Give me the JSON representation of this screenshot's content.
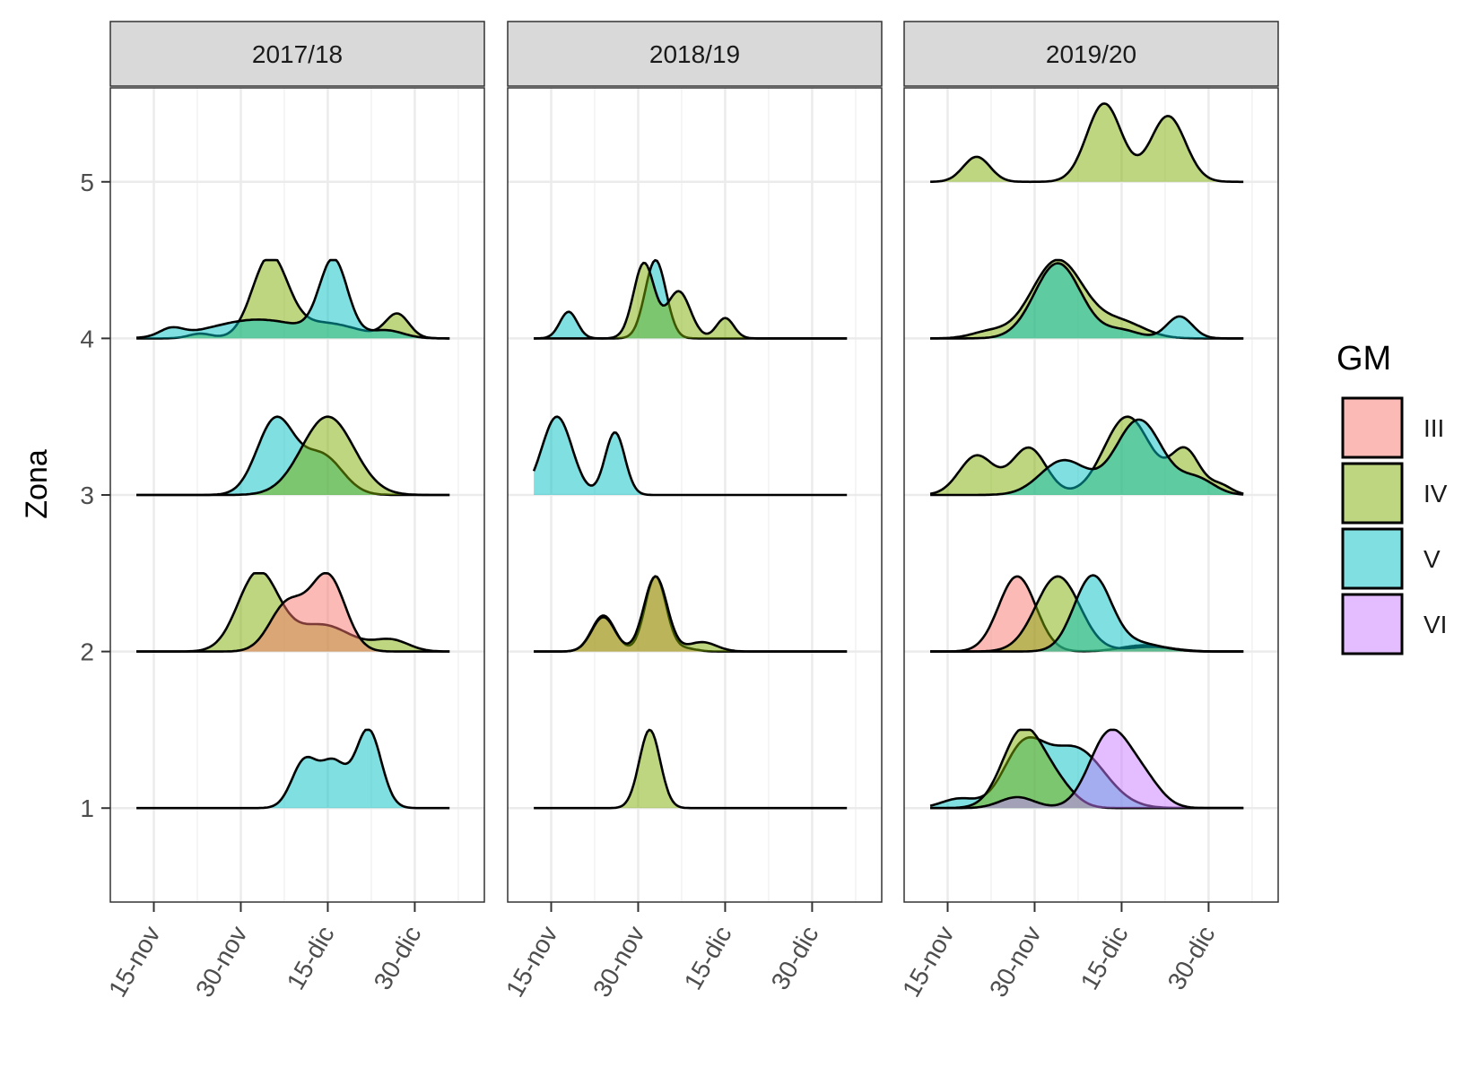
{
  "chart_data": {
    "type": "area",
    "subtype": "ridgeline-density",
    "ylabel": "Zona",
    "yticks": [
      1,
      2,
      3,
      4,
      5
    ],
    "ylim": [
      0.4,
      5.6
    ],
    "x_ticks": [
      "15-nov",
      "30-nov",
      "15-dic",
      "30-dic"
    ],
    "x_tick_days": [
      15,
      30,
      45,
      60
    ],
    "xlim_days": [
      7.5,
      72
    ],
    "x_start_day": 12,
    "x_end_day": 66,
    "legend": {
      "title": "GM",
      "position": "right",
      "entries": [
        {
          "key": "III",
          "label": "III",
          "color": "#F8766D"
        },
        {
          "key": "IV",
          "label": "IV",
          "color": "#7CAE00"
        },
        {
          "key": "V",
          "label": "V",
          "color": "#00BFC4"
        },
        {
          "key": "VI",
          "label": "VI",
          "color": "#C77CFF"
        }
      ]
    },
    "facets": [
      {
        "label": "2017/18",
        "series": [
          {
            "zona": 1,
            "gm": "V",
            "peaks": [
              [
                41,
                0.3,
                2.2
              ],
              [
                46,
                0.28,
                2.2
              ],
              [
                52,
                0.5,
                2.2
              ]
            ]
          },
          {
            "zona": 2,
            "gm": "IV",
            "peaks": [
              [
                33,
                0.5,
                3.5
              ],
              [
                44,
                0.17,
                5
              ],
              [
                56,
                0.07,
                3
              ]
            ]
          },
          {
            "zona": 2,
            "gm": "III",
            "peaks": [
              [
                38,
                0.3,
                3
              ],
              [
                45,
                0.48,
                3
              ]
            ]
          },
          {
            "zona": 3,
            "gm": "V",
            "peaks": [
              [
                36,
                0.48,
                3.2
              ],
              [
                44,
                0.25,
                3.5
              ]
            ]
          },
          {
            "zona": 3,
            "gm": "IV",
            "peaks": [
              [
                45,
                0.5,
                4.5
              ]
            ]
          },
          {
            "zona": 4,
            "gm": "IV",
            "peaks": [
              [
                23,
                0.03,
                2
              ],
              [
                35,
                0.5,
                3
              ],
              [
                44,
                0.1,
                6
              ],
              [
                57,
                0.15,
                2
              ]
            ]
          },
          {
            "zona": 4,
            "gm": "V",
            "peaks": [
              [
                18,
                0.05,
                2
              ],
              [
                33,
                0.12,
                8
              ],
              [
                46,
                0.48,
                2.4
              ],
              [
                55,
                0.05,
                3
              ]
            ]
          }
        ]
      },
      {
        "label": "2018/19",
        "series": [
          {
            "zona": 1,
            "gm": "IV",
            "peaks": [
              [
                32,
                0.5,
                1.8
              ]
            ]
          },
          {
            "zona": 2,
            "gm": "III",
            "peaks": [
              [
                24,
                0.23,
                2
              ],
              [
                33,
                0.48,
                1.8
              ],
              [
                38,
                0.02,
                2
              ]
            ]
          },
          {
            "zona": 2,
            "gm": "IV",
            "peaks": [
              [
                24,
                0.22,
                2
              ],
              [
                33,
                0.48,
                2
              ],
              [
                41,
                0.06,
                2.5
              ]
            ]
          },
          {
            "zona": 3,
            "gm": "V",
            "peaks": [
              [
                16,
                0.5,
                2.6
              ],
              [
                26,
                0.4,
                1.7
              ]
            ]
          },
          {
            "zona": 4,
            "gm": "V",
            "peaks": [
              [
                18,
                0.17,
                1.5
              ],
              [
                33,
                0.5,
                1.8
              ]
            ]
          },
          {
            "zona": 4,
            "gm": "IV",
            "peaks": [
              [
                31,
                0.48,
                1.8
              ],
              [
                37,
                0.3,
                2
              ],
              [
                45,
                0.13,
                1.5
              ]
            ]
          }
        ]
      },
      {
        "label": "2019/20",
        "series": [
          {
            "zona": 1,
            "gm": "V",
            "peaks": [
              [
                17,
                0.06,
                3
              ],
              [
                28,
                0.36,
                3.5
              ],
              [
                37,
                0.38,
                5
              ]
            ]
          },
          {
            "zona": 1,
            "gm": "IV",
            "peaks": [
              [
                28,
                0.5,
                3.5
              ],
              [
                34,
                0.12,
                3
              ]
            ]
          },
          {
            "zona": 1,
            "gm": "VI",
            "peaks": [
              [
                27,
                0.07,
                3
              ],
              [
                43,
                0.48,
                3.5
              ],
              [
                49,
                0.15,
                3
              ]
            ]
          },
          {
            "zona": 2,
            "gm": "III",
            "peaks": [
              [
                27,
                0.48,
                3.2
              ],
              [
                49,
                0.04,
                4
              ]
            ]
          },
          {
            "zona": 2,
            "gm": "IV",
            "peaks": [
              [
                34,
                0.48,
                3.8
              ],
              [
                50,
                0.03,
                4
              ]
            ]
          },
          {
            "zona": 2,
            "gm": "V",
            "peaks": [
              [
                40,
                0.48,
                3.2
              ],
              [
                48,
                0.05,
                4
              ]
            ]
          },
          {
            "zona": 3,
            "gm": "IV",
            "peaks": [
              [
                20,
                0.25,
                3
              ],
              [
                29,
                0.3,
                3
              ],
              [
                46,
                0.5,
                4
              ],
              [
                56,
                0.28,
                2.5
              ],
              [
                62,
                0.06,
                2
              ]
            ]
          },
          {
            "zona": 3,
            "gm": "V",
            "peaks": [
              [
                35,
                0.22,
                4
              ],
              [
                48,
                0.48,
                4
              ],
              [
                58,
                0.1,
                3
              ]
            ]
          },
          {
            "zona": 4,
            "gm": "IV",
            "peaks": [
              [
                22,
                0.04,
                3
              ],
              [
                34,
                0.5,
                4.5
              ],
              [
                45,
                0.1,
                4
              ]
            ]
          },
          {
            "zona": 4,
            "gm": "V",
            "peaks": [
              [
                34,
                0.48,
                4
              ],
              [
                45,
                0.05,
                3
              ],
              [
                55,
                0.14,
                2.2
              ]
            ]
          },
          {
            "zona": 5,
            "gm": "IV",
            "peaks": [
              [
                20,
                0.16,
                2.3
              ],
              [
                42,
                0.5,
                3
              ],
              [
                53,
                0.42,
                3
              ]
            ]
          }
        ]
      }
    ]
  }
}
